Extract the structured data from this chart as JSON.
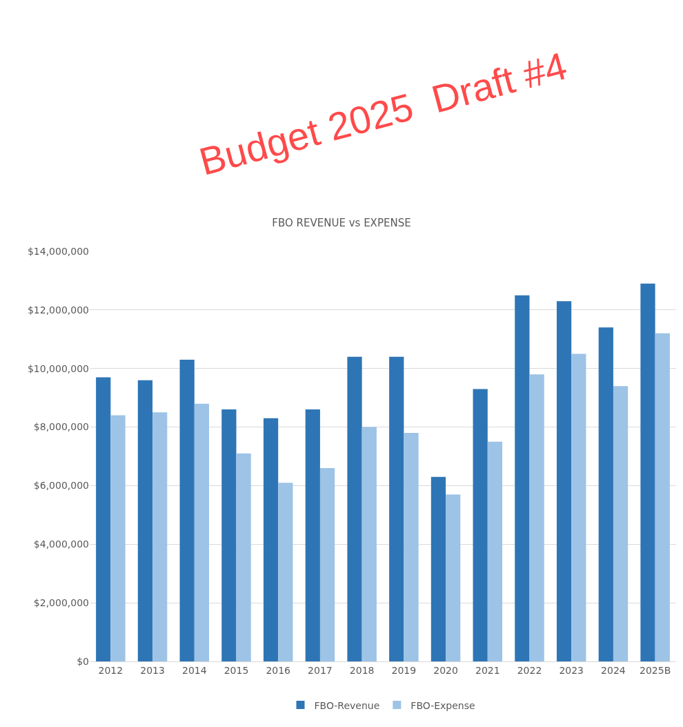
{
  "chart_data": {
    "type": "bar",
    "title": "FBO REVENUE vs EXPENSE",
    "categories": [
      "2012",
      "2013",
      "2014",
      "2015",
      "2016",
      "2017",
      "2018",
      "2019",
      "2020",
      "2021",
      "2022",
      "2023",
      "2024",
      "2025B"
    ],
    "series": [
      {
        "name": "FBO-Revenue",
        "color": "#2e75b6",
        "values": [
          9700000,
          9600000,
          10300000,
          8600000,
          8300000,
          8600000,
          10400000,
          10400000,
          6300000,
          9300000,
          12500000,
          12300000,
          11400000,
          12900000
        ]
      },
      {
        "name": "FBO-Expense",
        "color": "#9dc3e6",
        "values": [
          8400000,
          8500000,
          8800000,
          7100000,
          6100000,
          6600000,
          8000000,
          7800000,
          5700000,
          7500000,
          9800000,
          10500000,
          9400000,
          11200000
        ]
      }
    ],
    "ylim": [
      0,
      14000000
    ],
    "yticks": [
      {
        "value": 0,
        "label": "$0"
      },
      {
        "value": 2000000,
        "label": "$2,000,000"
      },
      {
        "value": 4000000,
        "label": "$4,000,000"
      },
      {
        "value": 6000000,
        "label": "$6,000,000"
      },
      {
        "value": 8000000,
        "label": "$8,000,000"
      },
      {
        "value": 10000000,
        "label": "$10,000,000"
      },
      {
        "value": 12000000,
        "label": "$12,000,000"
      },
      {
        "value": 14000000,
        "label": "$14,000,000"
      }
    ],
    "grid": "y",
    "legend": "bottom",
    "annotations": [
      "Budget 2025  Draft #4"
    ]
  }
}
